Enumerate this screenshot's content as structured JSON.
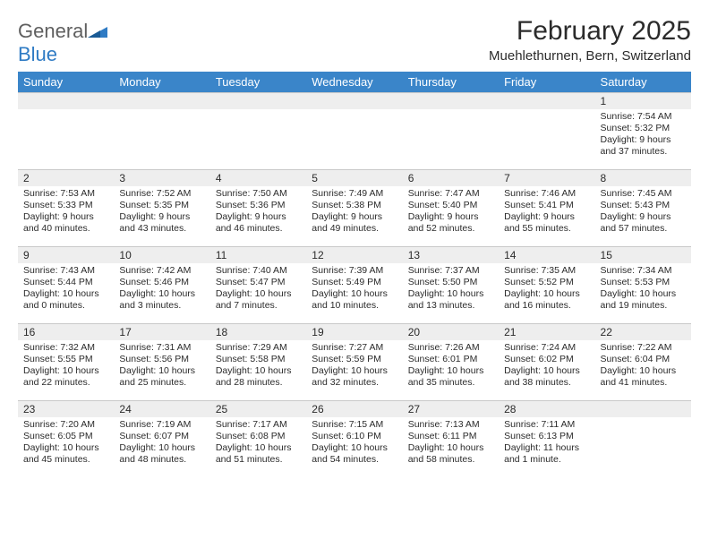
{
  "logo": {
    "general": "General",
    "blue": "Blue"
  },
  "title": "February 2025",
  "location": "Muehlethurnen, Bern, Switzerland",
  "colors": {
    "header_bg": "#3a85c9",
    "header_text": "#ffffff",
    "daynum_bg": "#eeeeee",
    "daynum_border": "#c9c9c9",
    "body_text": "#2b2b2b",
    "logo_gray": "#5f5f5f",
    "logo_blue": "#2f7bc4",
    "page_bg": "#ffffff"
  },
  "typography": {
    "title_fontsize": 30,
    "location_fontsize": 15,
    "weekday_fontsize": 13,
    "daynum_fontsize": 12,
    "cell_fontsize": 10.5
  },
  "columns": [
    "Sunday",
    "Monday",
    "Tuesday",
    "Wednesday",
    "Thursday",
    "Friday",
    "Saturday"
  ],
  "weeks": [
    [
      null,
      null,
      null,
      null,
      null,
      null,
      {
        "day": "1",
        "sunrise": "Sunrise: 7:54 AM",
        "sunset": "Sunset: 5:32 PM",
        "daylight": "Daylight: 9 hours and 37 minutes."
      }
    ],
    [
      {
        "day": "2",
        "sunrise": "Sunrise: 7:53 AM",
        "sunset": "Sunset: 5:33 PM",
        "daylight": "Daylight: 9 hours and 40 minutes."
      },
      {
        "day": "3",
        "sunrise": "Sunrise: 7:52 AM",
        "sunset": "Sunset: 5:35 PM",
        "daylight": "Daylight: 9 hours and 43 minutes."
      },
      {
        "day": "4",
        "sunrise": "Sunrise: 7:50 AM",
        "sunset": "Sunset: 5:36 PM",
        "daylight": "Daylight: 9 hours and 46 minutes."
      },
      {
        "day": "5",
        "sunrise": "Sunrise: 7:49 AM",
        "sunset": "Sunset: 5:38 PM",
        "daylight": "Daylight: 9 hours and 49 minutes."
      },
      {
        "day": "6",
        "sunrise": "Sunrise: 7:47 AM",
        "sunset": "Sunset: 5:40 PM",
        "daylight": "Daylight: 9 hours and 52 minutes."
      },
      {
        "day": "7",
        "sunrise": "Sunrise: 7:46 AM",
        "sunset": "Sunset: 5:41 PM",
        "daylight": "Daylight: 9 hours and 55 minutes."
      },
      {
        "day": "8",
        "sunrise": "Sunrise: 7:45 AM",
        "sunset": "Sunset: 5:43 PM",
        "daylight": "Daylight: 9 hours and 57 minutes."
      }
    ],
    [
      {
        "day": "9",
        "sunrise": "Sunrise: 7:43 AM",
        "sunset": "Sunset: 5:44 PM",
        "daylight": "Daylight: 10 hours and 0 minutes."
      },
      {
        "day": "10",
        "sunrise": "Sunrise: 7:42 AM",
        "sunset": "Sunset: 5:46 PM",
        "daylight": "Daylight: 10 hours and 3 minutes."
      },
      {
        "day": "11",
        "sunrise": "Sunrise: 7:40 AM",
        "sunset": "Sunset: 5:47 PM",
        "daylight": "Daylight: 10 hours and 7 minutes."
      },
      {
        "day": "12",
        "sunrise": "Sunrise: 7:39 AM",
        "sunset": "Sunset: 5:49 PM",
        "daylight": "Daylight: 10 hours and 10 minutes."
      },
      {
        "day": "13",
        "sunrise": "Sunrise: 7:37 AM",
        "sunset": "Sunset: 5:50 PM",
        "daylight": "Daylight: 10 hours and 13 minutes."
      },
      {
        "day": "14",
        "sunrise": "Sunrise: 7:35 AM",
        "sunset": "Sunset: 5:52 PM",
        "daylight": "Daylight: 10 hours and 16 minutes."
      },
      {
        "day": "15",
        "sunrise": "Sunrise: 7:34 AM",
        "sunset": "Sunset: 5:53 PM",
        "daylight": "Daylight: 10 hours and 19 minutes."
      }
    ],
    [
      {
        "day": "16",
        "sunrise": "Sunrise: 7:32 AM",
        "sunset": "Sunset: 5:55 PM",
        "daylight": "Daylight: 10 hours and 22 minutes."
      },
      {
        "day": "17",
        "sunrise": "Sunrise: 7:31 AM",
        "sunset": "Sunset: 5:56 PM",
        "daylight": "Daylight: 10 hours and 25 minutes."
      },
      {
        "day": "18",
        "sunrise": "Sunrise: 7:29 AM",
        "sunset": "Sunset: 5:58 PM",
        "daylight": "Daylight: 10 hours and 28 minutes."
      },
      {
        "day": "19",
        "sunrise": "Sunrise: 7:27 AM",
        "sunset": "Sunset: 5:59 PM",
        "daylight": "Daylight: 10 hours and 32 minutes."
      },
      {
        "day": "20",
        "sunrise": "Sunrise: 7:26 AM",
        "sunset": "Sunset: 6:01 PM",
        "daylight": "Daylight: 10 hours and 35 minutes."
      },
      {
        "day": "21",
        "sunrise": "Sunrise: 7:24 AM",
        "sunset": "Sunset: 6:02 PM",
        "daylight": "Daylight: 10 hours and 38 minutes."
      },
      {
        "day": "22",
        "sunrise": "Sunrise: 7:22 AM",
        "sunset": "Sunset: 6:04 PM",
        "daylight": "Daylight: 10 hours and 41 minutes."
      }
    ],
    [
      {
        "day": "23",
        "sunrise": "Sunrise: 7:20 AM",
        "sunset": "Sunset: 6:05 PM",
        "daylight": "Daylight: 10 hours and 45 minutes."
      },
      {
        "day": "24",
        "sunrise": "Sunrise: 7:19 AM",
        "sunset": "Sunset: 6:07 PM",
        "daylight": "Daylight: 10 hours and 48 minutes."
      },
      {
        "day": "25",
        "sunrise": "Sunrise: 7:17 AM",
        "sunset": "Sunset: 6:08 PM",
        "daylight": "Daylight: 10 hours and 51 minutes."
      },
      {
        "day": "26",
        "sunrise": "Sunrise: 7:15 AM",
        "sunset": "Sunset: 6:10 PM",
        "daylight": "Daylight: 10 hours and 54 minutes."
      },
      {
        "day": "27",
        "sunrise": "Sunrise: 7:13 AM",
        "sunset": "Sunset: 6:11 PM",
        "daylight": "Daylight: 10 hours and 58 minutes."
      },
      {
        "day": "28",
        "sunrise": "Sunrise: 7:11 AM",
        "sunset": "Sunset: 6:13 PM",
        "daylight": "Daylight: 11 hours and 1 minute."
      },
      null
    ]
  ]
}
